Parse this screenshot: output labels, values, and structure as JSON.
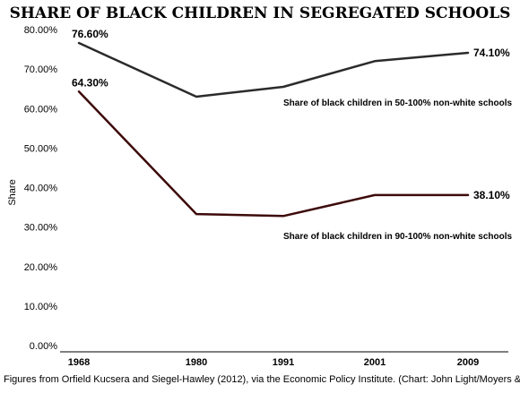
{
  "chart_data": {
    "type": "line",
    "title": "SHARE OF BLACK CHILDREN IN SEGREGATED SCHOOLS",
    "ylabel": "Share",
    "xlabel": "",
    "categories": [
      "1968",
      "1980",
      "1991",
      "2001",
      "2009"
    ],
    "ylim": [
      0,
      80
    ],
    "yticks": [
      "0.00%",
      "10.00%",
      "20.00%",
      "30.00%",
      "40.00%",
      "50.00%",
      "60.00%",
      "70.00%",
      "80.00%"
    ],
    "grid": false,
    "series": [
      {
        "name": "Share of black children in 50-100% non-white schools",
        "values": [
          76.6,
          63.0,
          65.5,
          72.0,
          74.1
        ],
        "color": "#2b2b2b",
        "first_label": "76.60%",
        "last_label": "74.10%"
      },
      {
        "name": "Share of black children in 90-100% non-white schools",
        "values": [
          64.3,
          33.3,
          32.8,
          38.1,
          38.1
        ],
        "color": "#3d0a0a",
        "first_label": "64.30%",
        "last_label": "38.10%"
      }
    ],
    "source": "Figures from Orfield Kucsera and Siegel-Hawley (2012), via the Economic Policy Institute. (Chart: John Light/Moyers &"
  }
}
